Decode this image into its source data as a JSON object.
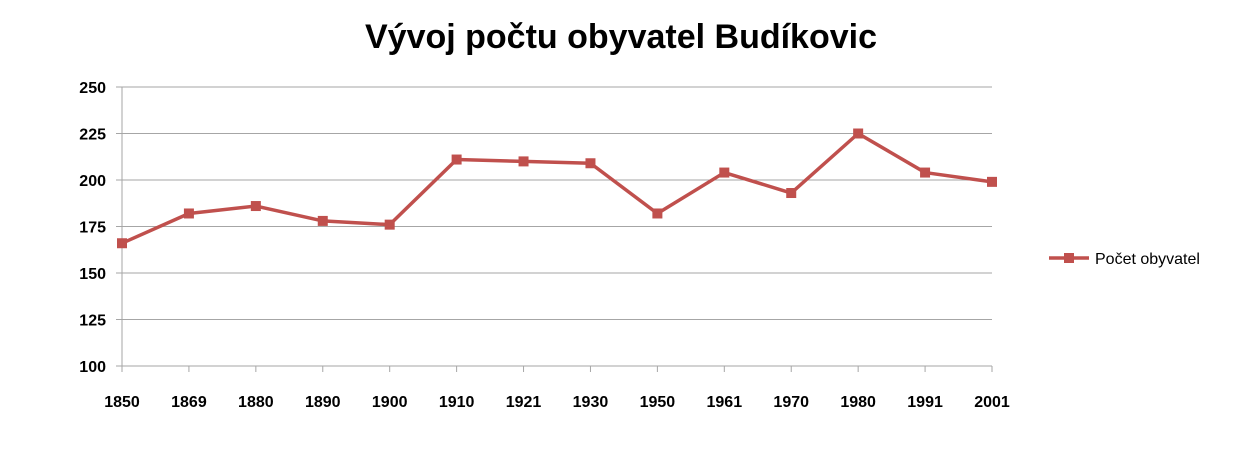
{
  "chart_data": {
    "type": "line",
    "title": "Vývoj počtu obyvatel Budíkovic",
    "xlabel": "",
    "ylabel": "",
    "categories": [
      "1850",
      "1869",
      "1880",
      "1890",
      "1900",
      "1910",
      "1921",
      "1930",
      "1950",
      "1961",
      "1970",
      "1980",
      "1991",
      "2001"
    ],
    "series": [
      {
        "name": "Počet obyvatel",
        "values": [
          166,
          182,
          186,
          178,
          176,
          211,
          210,
          209,
          182,
          204,
          193,
          225,
          204,
          199
        ]
      }
    ],
    "ylim": [
      100,
      250
    ],
    "yticks": [
      "100",
      "125",
      "150",
      "175",
      "200",
      "225",
      "250"
    ],
    "grid": true,
    "legend_position": "right",
    "series_color": "#c0504d",
    "gridline_color": "#a6a6a6"
  }
}
